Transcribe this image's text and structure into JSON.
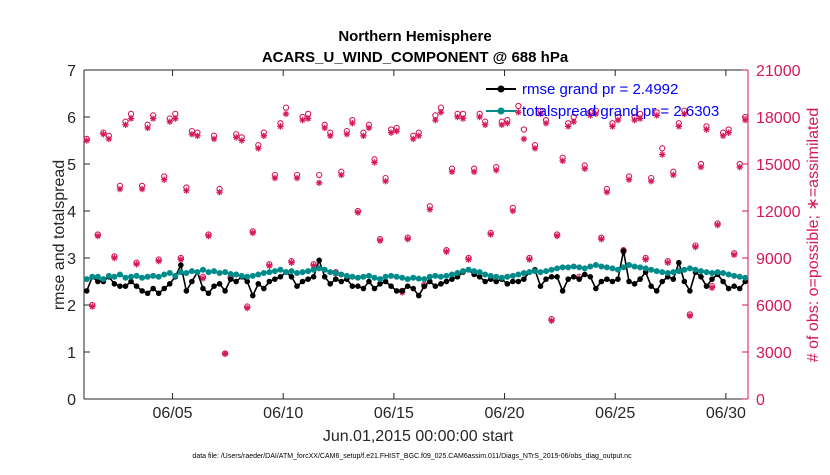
{
  "chart_data": {
    "type": "line",
    "title": "Northern Hemisphere",
    "subtitle": "ACARS_U_WIND_COMPONENT @ 688 hPa",
    "xlabel": "Jun.01,2015 00:00:00 start",
    "ylabel": "rmse and totalspread",
    "ylabel_right": "# of obs: o=possible; ∗=assimilated",
    "footnote": "data file: /Users/raeder/DAI/ATM_forcXX/CAM6_setup/f.e21.FHIST_BGC.f09_025.CAM6assim.011/Diags_NTrS_2015-06/obs_diag_output.nc",
    "xlim": [
      1,
      31
    ],
    "ylim": [
      0,
      7
    ],
    "ylim_right": [
      0,
      21000
    ],
    "x_ticks": [
      5,
      10,
      15,
      20,
      25,
      30
    ],
    "x_tick_labels": [
      "06/05",
      "06/10",
      "06/15",
      "06/20",
      "06/25",
      "06/30"
    ],
    "y_ticks": [
      0,
      1,
      2,
      3,
      4,
      5,
      6,
      7
    ],
    "y_tick_labels": [
      "0",
      "1",
      "2",
      "3",
      "4",
      "5",
      "6",
      "7"
    ],
    "y_right_ticks": [
      0,
      3000,
      6000,
      9000,
      12000,
      15000,
      18000,
      21000
    ],
    "y_right_tick_labels": [
      "0",
      "3000",
      "6000",
      "9000",
      "12000",
      "15000",
      "18000",
      "21000"
    ],
    "legend": {
      "position": "top-right",
      "entries": [
        {
          "label": "rmse grand pr = 2.4992",
          "color": "#000000"
        },
        {
          "label": "totalspread grand pr = 2.6303",
          "color": "#008b8b"
        }
      ]
    },
    "colors": {
      "rmse": "#000000",
      "spread": "#008b8b",
      "obs": "#d6175a"
    },
    "x": [
      1.125,
      1.375,
      1.625,
      1.875,
      2.125,
      2.375,
      2.625,
      2.875,
      3.125,
      3.375,
      3.625,
      3.875,
      4.125,
      4.375,
      4.625,
      4.875,
      5.125,
      5.375,
      5.625,
      5.875,
      6.125,
      6.375,
      6.625,
      6.875,
      7.125,
      7.375,
      7.625,
      7.875,
      8.125,
      8.375,
      8.625,
      8.875,
      9.125,
      9.375,
      9.625,
      9.875,
      10.125,
      10.375,
      10.625,
      10.875,
      11.125,
      11.375,
      11.625,
      11.875,
      12.125,
      12.375,
      12.625,
      12.875,
      13.125,
      13.375,
      13.625,
      13.875,
      14.125,
      14.375,
      14.625,
      14.875,
      15.125,
      15.375,
      15.625,
      15.875,
      16.125,
      16.375,
      16.625,
      16.875,
      17.125,
      17.375,
      17.625,
      17.875,
      18.125,
      18.375,
      18.625,
      18.875,
      19.125,
      19.375,
      19.625,
      19.875,
      20.125,
      20.375,
      20.625,
      20.875,
      21.125,
      21.375,
      21.625,
      21.875,
      22.125,
      22.375,
      22.625,
      22.875,
      23.125,
      23.375,
      23.625,
      23.875,
      24.125,
      24.375,
      24.625,
      24.875,
      25.125,
      25.375,
      25.625,
      25.875,
      26.125,
      26.375,
      26.625,
      26.875,
      27.125,
      27.375,
      27.625,
      27.875,
      28.125,
      28.375,
      28.625,
      28.875,
      29.125,
      29.375,
      29.625,
      29.875,
      30.125,
      30.375,
      30.625,
      30.875
    ],
    "series": [
      {
        "name": "rmse",
        "axis": "left",
        "values": [
          2.3,
          2.6,
          2.5,
          2.5,
          2.6,
          2.45,
          2.4,
          2.4,
          2.5,
          2.4,
          2.3,
          2.25,
          2.35,
          2.25,
          2.35,
          2.45,
          2.6,
          2.85,
          2.3,
          2.5,
          2.7,
          2.35,
          2.25,
          2.4,
          2.45,
          2.3,
          2.55,
          2.5,
          2.6,
          2.5,
          2.2,
          2.45,
          2.35,
          2.5,
          2.55,
          2.6,
          2.7,
          2.6,
          2.4,
          2.5,
          2.55,
          2.6,
          2.95,
          2.6,
          2.45,
          2.55,
          2.5,
          2.55,
          2.4,
          2.4,
          2.35,
          2.5,
          2.35,
          2.45,
          2.5,
          2.4,
          2.3,
          2.3,
          2.4,
          2.35,
          2.2,
          2.4,
          2.5,
          2.4,
          2.45,
          2.5,
          2.55,
          2.6,
          2.7,
          2.75,
          2.65,
          2.6,
          2.5,
          2.55,
          2.5,
          2.55,
          2.45,
          2.5,
          2.5,
          2.55,
          2.7,
          2.75,
          2.4,
          2.55,
          2.6,
          2.6,
          2.3,
          2.55,
          2.6,
          2.55,
          2.65,
          2.6,
          2.35,
          2.5,
          2.55,
          2.5,
          2.55,
          3.15,
          2.5,
          2.45,
          2.55,
          2.7,
          2.4,
          2.3,
          2.5,
          2.6,
          2.55,
          2.9,
          2.5,
          2.3,
          2.7,
          2.6,
          2.4,
          2.55,
          2.65,
          2.5,
          2.35,
          2.4,
          2.35,
          2.5
        ],
        "x_values_are_shared": true
      },
      {
        "name": "totalspread",
        "axis": "left",
        "values": [
          2.55,
          2.6,
          2.6,
          2.55,
          2.62,
          2.6,
          2.65,
          2.58,
          2.6,
          2.62,
          2.58,
          2.6,
          2.62,
          2.6,
          2.65,
          2.68,
          2.62,
          2.7,
          2.68,
          2.72,
          2.7,
          2.75,
          2.7,
          2.72,
          2.68,
          2.7,
          2.66,
          2.65,
          2.62,
          2.6,
          2.62,
          2.65,
          2.68,
          2.7,
          2.72,
          2.75,
          2.7,
          2.72,
          2.68,
          2.7,
          2.72,
          2.75,
          2.78,
          2.75,
          2.7,
          2.68,
          2.65,
          2.62,
          2.6,
          2.58,
          2.6,
          2.62,
          2.58,
          2.55,
          2.6,
          2.62,
          2.6,
          2.58,
          2.55,
          2.58,
          2.56,
          2.55,
          2.6,
          2.62,
          2.6,
          2.62,
          2.65,
          2.68,
          2.72,
          2.75,
          2.72,
          2.7,
          2.65,
          2.62,
          2.6,
          2.58,
          2.6,
          2.62,
          2.65,
          2.68,
          2.7,
          2.72,
          2.7,
          2.72,
          2.75,
          2.78,
          2.8,
          2.8,
          2.82,
          2.8,
          2.78,
          2.82,
          2.85,
          2.82,
          2.8,
          2.78,
          2.75,
          2.8,
          2.85,
          2.82,
          2.8,
          2.78,
          2.75,
          2.72,
          2.7,
          2.68,
          2.7,
          2.72,
          2.75,
          2.78,
          2.75,
          2.72,
          2.7,
          2.68,
          2.7,
          2.68,
          2.65,
          2.62,
          2.6,
          2.58
        ],
        "x_values_are_shared": true
      },
      {
        "name": "obs_possible",
        "axis": "right",
        "marker": "o",
        "values": [
          16600,
          6000,
          10500,
          17000,
          16800,
          9100,
          13600,
          17700,
          18200,
          8700,
          13600,
          17500,
          18100,
          8900,
          14200,
          17900,
          18200,
          9000,
          13500,
          17100,
          17000,
          7800,
          10500,
          16800,
          13400,
          2900,
          7800,
          16900,
          16700,
          5900,
          10700,
          16200,
          17000,
          8600,
          14300,
          17600,
          18600,
          8800,
          14300,
          18000,
          18200,
          8600,
          14300,
          17500,
          17000,
          8100,
          14500,
          17100,
          17800,
          12000,
          17000,
          17500,
          15300,
          10200,
          14100,
          17200,
          17300,
          6900,
          10300,
          16800,
          17000,
          7300,
          12300,
          18100,
          18600,
          9500,
          14700,
          18200,
          18200,
          9000,
          14700,
          18200,
          17700,
          10600,
          14800,
          17700,
          17800,
          12200,
          18700,
          17200,
          9000,
          16200,
          18400,
          17800,
          5100,
          10500,
          15400,
          17600,
          18000,
          7800,
          14900,
          18300,
          18400,
          10300,
          13400,
          17600,
          18000,
          9500,
          14200,
          18000,
          18200,
          9000,
          14100,
          18300,
          16000,
          8800,
          14500,
          17600,
          18400,
          5400,
          9800,
          15000,
          17400,
          7200,
          11200,
          17000,
          17200,
          9300,
          15000,
          18000
        ]
      },
      {
        "name": "obs_assimilated",
        "axis": "right",
        "marker": "*",
        "values": [
          16500,
          5900,
          10400,
          16900,
          16600,
          9000,
          13400,
          17500,
          17900,
          8600,
          13400,
          17300,
          17900,
          8800,
          14000,
          17700,
          17900,
          8900,
          13300,
          16900,
          16800,
          7700,
          10400,
          16600,
          13200,
          2900,
          7700,
          16700,
          16500,
          5800,
          10600,
          16000,
          16800,
          8500,
          14100,
          17400,
          18200,
          8700,
          14100,
          17800,
          17900,
          8500,
          13800,
          17300,
          16800,
          8000,
          14300,
          16900,
          17600,
          11900,
          16800,
          17300,
          15100,
          10100,
          13900,
          17000,
          17100,
          6800,
          10200,
          16600,
          16800,
          7200,
          12100,
          17800,
          18300,
          9400,
          14500,
          18000,
          17900,
          8900,
          14500,
          18000,
          17500,
          10500,
          14600,
          17500,
          17600,
          12000,
          18300,
          16600,
          8900,
          16000,
          18200,
          17600,
          5000,
          10400,
          15200,
          17400,
          17700,
          7700,
          14700,
          18100,
          18200,
          10200,
          13200,
          17400,
          17800,
          9400,
          14000,
          17800,
          17900,
          8900,
          13900,
          18100,
          15600,
          8700,
          14300,
          17400,
          18200,
          5300,
          9700,
          14800,
          17200,
          7100,
          11100,
          16800,
          17000,
          9200,
          14800,
          17800
        ]
      }
    ]
  }
}
